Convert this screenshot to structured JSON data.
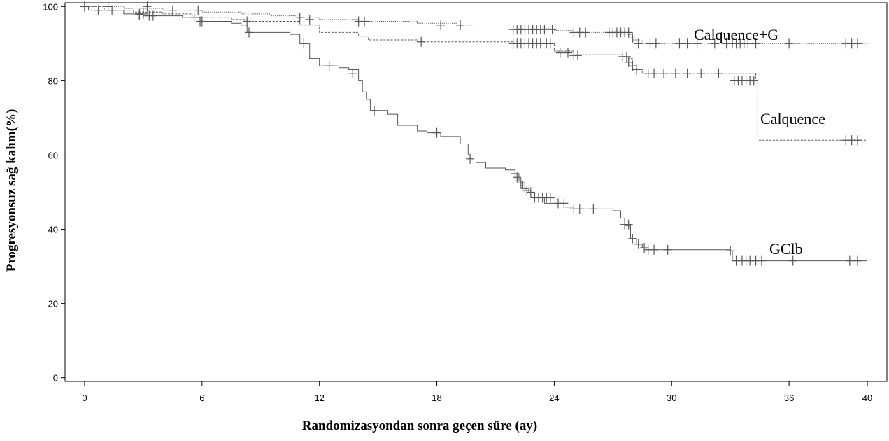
{
  "chart_data": {
    "type": "line",
    "subtype": "kaplan-meier",
    "title": "",
    "xlabel": "Randomizasyondan sonra geçen süre (ay)",
    "ylabel": "Progresyonsuz sağ kalım(%)",
    "xlim": [
      -1,
      41
    ],
    "ylim": [
      -1,
      101
    ],
    "xticks": [
      0,
      6,
      12,
      18,
      24,
      30,
      36,
      40
    ],
    "yticks": [
      0,
      20,
      40,
      60,
      80,
      100
    ],
    "grid": false,
    "legend": "none",
    "series": [
      {
        "name": "Calquence+G",
        "line_style": "dotted",
        "color": "#555555",
        "steps": [
          [
            0,
            100
          ],
          [
            2,
            99.5
          ],
          [
            4,
            99
          ],
          [
            6,
            98.5
          ],
          [
            8,
            98
          ],
          [
            9.5,
            97.5
          ],
          [
            11,
            97
          ],
          [
            12,
            96.5
          ],
          [
            14,
            96
          ],
          [
            17,
            95.5
          ],
          [
            19,
            95
          ],
          [
            20,
            94.5
          ],
          [
            22,
            94
          ],
          [
            24,
            93.5
          ],
          [
            25,
            93
          ],
          [
            27.5,
            92.5
          ],
          [
            28,
            91
          ],
          [
            28.5,
            90
          ],
          [
            40,
            90
          ]
        ],
        "censored": [
          [
            0,
            100
          ],
          [
            1.2,
            100
          ],
          [
            3.2,
            100
          ],
          [
            4.5,
            99
          ],
          [
            5.8,
            99
          ],
          [
            11,
            97
          ],
          [
            11.5,
            96.5
          ],
          [
            14,
            96
          ],
          [
            14.3,
            96
          ],
          [
            18.2,
            95
          ],
          [
            19.2,
            95
          ],
          [
            21.9,
            93.8
          ],
          [
            22.1,
            93.8
          ],
          [
            22.3,
            93.8
          ],
          [
            22.5,
            93.8
          ],
          [
            22.7,
            93.8
          ],
          [
            22.9,
            93.8
          ],
          [
            23.1,
            93.8
          ],
          [
            23.3,
            93.8
          ],
          [
            23.5,
            93.8
          ],
          [
            23.9,
            93.8
          ],
          [
            25,
            93
          ],
          [
            25.3,
            93
          ],
          [
            25.6,
            93
          ],
          [
            26.8,
            93
          ],
          [
            27,
            93
          ],
          [
            27.2,
            93
          ],
          [
            27.4,
            93
          ],
          [
            27.6,
            93
          ],
          [
            27.8,
            93
          ],
          [
            28,
            91.5
          ],
          [
            28.3,
            90
          ],
          [
            28.9,
            90
          ],
          [
            29.2,
            90
          ],
          [
            30.4,
            90
          ],
          [
            30.8,
            90
          ],
          [
            31.3,
            90
          ],
          [
            32.2,
            90
          ],
          [
            32.8,
            90
          ],
          [
            33.1,
            90
          ],
          [
            33.3,
            90
          ],
          [
            33.5,
            90
          ],
          [
            33.7,
            90
          ],
          [
            33.9,
            90
          ],
          [
            34.3,
            90
          ],
          [
            36,
            90
          ],
          [
            38.9,
            90
          ],
          [
            39.2,
            90
          ],
          [
            39.5,
            90
          ]
        ]
      },
      {
        "name": "Calquence",
        "line_style": "dashed",
        "color": "#555555",
        "steps": [
          [
            0,
            100
          ],
          [
            1,
            99
          ],
          [
            2.5,
            98.5
          ],
          [
            4,
            98
          ],
          [
            5.5,
            97
          ],
          [
            7.5,
            96.5
          ],
          [
            8.2,
            96
          ],
          [
            11,
            95
          ],
          [
            12,
            93
          ],
          [
            14,
            92
          ],
          [
            14.5,
            91
          ],
          [
            17,
            90.5
          ],
          [
            22,
            90
          ],
          [
            24,
            88
          ],
          [
            25,
            87
          ],
          [
            27.5,
            86.5
          ],
          [
            27.8,
            86
          ],
          [
            28,
            83
          ],
          [
            28.5,
            82
          ],
          [
            34.3,
            80
          ],
          [
            34.4,
            64
          ],
          [
            40,
            64
          ]
        ],
        "censored": [
          [
            0,
            100
          ],
          [
            2.8,
            98
          ],
          [
            3,
            98
          ],
          [
            3.3,
            97.5
          ],
          [
            5.6,
            97
          ],
          [
            5.9,
            96
          ],
          [
            8.3,
            96
          ],
          [
            17.2,
            90.5
          ],
          [
            21.9,
            90
          ],
          [
            22.1,
            90
          ],
          [
            22.3,
            90
          ],
          [
            22.5,
            90
          ],
          [
            22.7,
            90
          ],
          [
            22.9,
            90
          ],
          [
            23.1,
            90
          ],
          [
            23.3,
            90
          ],
          [
            23.6,
            90
          ],
          [
            23.8,
            90
          ],
          [
            24.3,
            87.5
          ],
          [
            24.7,
            87.5
          ],
          [
            25,
            86.8
          ],
          [
            25.2,
            86.8
          ],
          [
            27.5,
            86.5
          ],
          [
            27.7,
            86.5
          ],
          [
            27.8,
            85
          ],
          [
            28,
            84
          ],
          [
            28.2,
            83
          ],
          [
            28.8,
            82
          ],
          [
            29.1,
            82
          ],
          [
            29.6,
            82
          ],
          [
            30.2,
            82
          ],
          [
            30.8,
            82
          ],
          [
            31.5,
            82
          ],
          [
            32.4,
            82
          ],
          [
            33.2,
            80
          ],
          [
            33.4,
            80
          ],
          [
            33.6,
            80
          ],
          [
            33.8,
            80
          ],
          [
            34,
            80
          ],
          [
            34.2,
            80
          ],
          [
            38.9,
            64
          ],
          [
            39.2,
            64
          ],
          [
            39.5,
            64
          ]
        ]
      },
      {
        "name": "GClb",
        "line_style": "solid",
        "color": "#555555",
        "steps": [
          [
            0,
            100
          ],
          [
            0.2,
            99
          ],
          [
            2,
            98
          ],
          [
            3,
            97.5
          ],
          [
            5,
            97
          ],
          [
            6,
            96
          ],
          [
            7.5,
            95.5
          ],
          [
            8,
            95
          ],
          [
            8.3,
            93
          ],
          [
            10.5,
            92.5
          ],
          [
            11,
            90
          ],
          [
            11.5,
            86
          ],
          [
            12,
            84
          ],
          [
            13,
            83.5
          ],
          [
            13.5,
            83
          ],
          [
            14,
            80
          ],
          [
            14.2,
            77
          ],
          [
            14.4,
            75
          ],
          [
            14.6,
            72
          ],
          [
            15.5,
            71
          ],
          [
            16,
            68
          ],
          [
            17,
            66.5
          ],
          [
            17.5,
            66
          ],
          [
            18.2,
            65
          ],
          [
            19.2,
            63
          ],
          [
            19.6,
            60
          ],
          [
            20,
            58
          ],
          [
            20.5,
            56.5
          ],
          [
            21.5,
            56
          ],
          [
            22,
            55
          ],
          [
            22.2,
            53
          ],
          [
            22.4,
            51
          ],
          [
            22.7,
            50
          ],
          [
            23,
            48.5
          ],
          [
            23.5,
            47
          ],
          [
            24.5,
            46
          ],
          [
            25,
            45.5
          ],
          [
            27,
            45
          ],
          [
            27.4,
            43
          ],
          [
            27.6,
            41
          ],
          [
            27.9,
            37.5
          ],
          [
            28.2,
            36
          ],
          [
            28.5,
            35
          ],
          [
            28.7,
            34.5
          ],
          [
            33,
            34.2
          ],
          [
            33.1,
            31.5
          ],
          [
            40,
            31.5
          ]
        ],
        "censored": [
          [
            0,
            100
          ],
          [
            0.7,
            99
          ],
          [
            1.4,
            99
          ],
          [
            2.8,
            97.8
          ],
          [
            3.5,
            97.5
          ],
          [
            6,
            96
          ],
          [
            8.4,
            93
          ],
          [
            11.2,
            90
          ],
          [
            12.5,
            84
          ],
          [
            13.7,
            82
          ],
          [
            14.8,
            72
          ],
          [
            18,
            66
          ],
          [
            19.7,
            59
          ],
          [
            22,
            55
          ],
          [
            22.1,
            54
          ],
          [
            22.3,
            52.5
          ],
          [
            22.5,
            51
          ],
          [
            22.6,
            50.5
          ],
          [
            22.8,
            50
          ],
          [
            23,
            48.5
          ],
          [
            23.2,
            48.5
          ],
          [
            23.4,
            48.5
          ],
          [
            23.6,
            48.5
          ],
          [
            23.8,
            48.5
          ],
          [
            24.2,
            47
          ],
          [
            24.5,
            47
          ],
          [
            25,
            45.5
          ],
          [
            25.3,
            45.5
          ],
          [
            26,
            45.5
          ],
          [
            27.6,
            41.3
          ],
          [
            27.8,
            41.3
          ],
          [
            28,
            37.5
          ],
          [
            28.3,
            36
          ],
          [
            28.6,
            35
          ],
          [
            28.8,
            34.5
          ],
          [
            29.1,
            34.5
          ],
          [
            29.8,
            34.5
          ],
          [
            33,
            34.2
          ],
          [
            33.3,
            31.5
          ],
          [
            33.6,
            31.5
          ],
          [
            33.8,
            31.5
          ],
          [
            34,
            31.5
          ],
          [
            34.3,
            31.5
          ],
          [
            34.6,
            31.5
          ],
          [
            36.2,
            31.5
          ],
          [
            39.1,
            31.5
          ],
          [
            39.5,
            31.5
          ]
        ]
      }
    ],
    "series_labels": [
      "Calquence+G",
      "Calquence",
      "GClb"
    ]
  }
}
